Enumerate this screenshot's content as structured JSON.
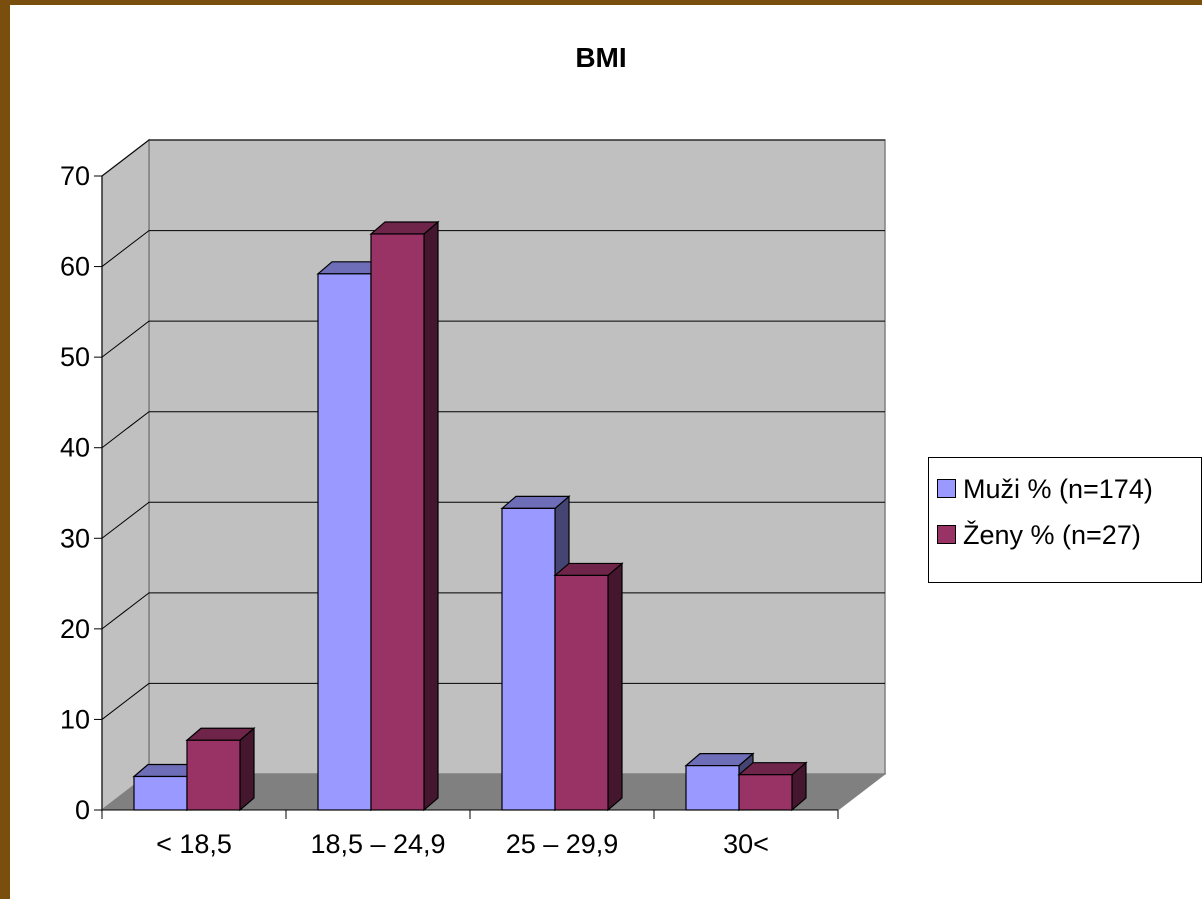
{
  "chart_data": {
    "type": "bar",
    "title": "BMI",
    "categories": [
      "< 18,5",
      "18,5 – 24,9",
      "25 – 29,9",
      "30<"
    ],
    "series": [
      {
        "name": "Muži % (n=174)",
        "values": [
          3.7,
          59.2,
          33.3,
          4.9
        ],
        "color": "#9999ff"
      },
      {
        "name": "Ženy % (n=27)",
        "values": [
          7.7,
          63.6,
          25.9,
          3.9
        ],
        "color": "#993366"
      }
    ],
    "yticks": [
      "0",
      "10",
      "20",
      "30",
      "40",
      "50",
      "60",
      "70"
    ],
    "ylim": [
      0,
      70
    ],
    "grid": true,
    "legend": "right",
    "style": "3d-clustered-column"
  }
}
